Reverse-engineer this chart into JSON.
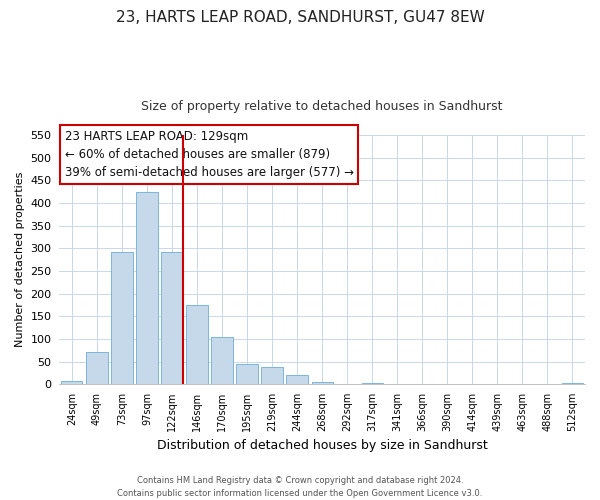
{
  "title": "23, HARTS LEAP ROAD, SANDHURST, GU47 8EW",
  "subtitle": "Size of property relative to detached houses in Sandhurst",
  "xlabel": "Distribution of detached houses by size in Sandhurst",
  "ylabel": "Number of detached properties",
  "bar_labels": [
    "24sqm",
    "49sqm",
    "73sqm",
    "97sqm",
    "122sqm",
    "146sqm",
    "170sqm",
    "195sqm",
    "219sqm",
    "244sqm",
    "268sqm",
    "292sqm",
    "317sqm",
    "341sqm",
    "366sqm",
    "390sqm",
    "414sqm",
    "439sqm",
    "463sqm",
    "488sqm",
    "512sqm"
  ],
  "bar_values": [
    8,
    70,
    291,
    424,
    291,
    175,
    105,
    44,
    38,
    20,
    5,
    1,
    2,
    0,
    1,
    0,
    0,
    0,
    0,
    0,
    3
  ],
  "bar_color": "#c5d9ea",
  "bar_edge_color": "#6baed6",
  "vline_index": 4,
  "vline_color": "#cc0000",
  "ylim": [
    0,
    550
  ],
  "yticks": [
    0,
    50,
    100,
    150,
    200,
    250,
    300,
    350,
    400,
    450,
    500,
    550
  ],
  "annotation_title": "23 HARTS LEAP ROAD: 129sqm",
  "annotation_line1": "← 60% of detached houses are smaller (879)",
  "annotation_line2": "39% of semi-detached houses are larger (577) →",
  "footer_line1": "Contains HM Land Registry data © Crown copyright and database right 2024.",
  "footer_line2": "Contains public sector information licensed under the Open Government Licence v3.0.",
  "background_color": "#ffffff",
  "grid_color": "#c8d8e8"
}
